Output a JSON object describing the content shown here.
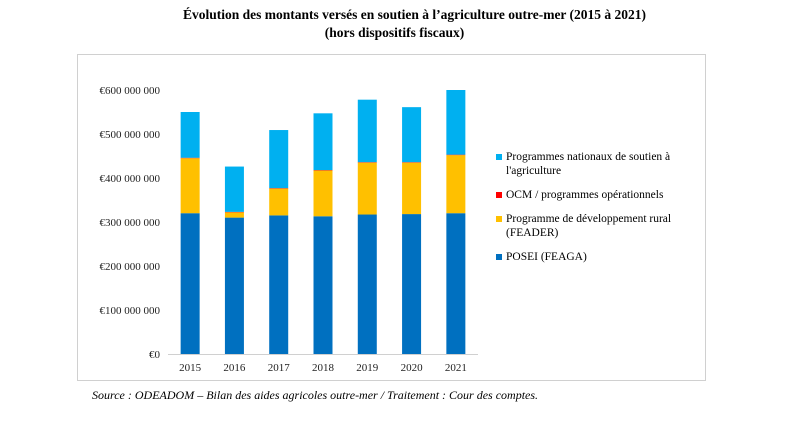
{
  "header": {
    "title_line1": "Évolution des montants versés en soutien à l’agriculture outre-mer (2015 à 2021)",
    "title_line2": "(hors dispositifs fiscaux)"
  },
  "source": "Source : ODEADOM – Bilan des aides agricoles outre-mer / Traitement : Cour des comptes.",
  "chart_data": {
    "type": "bar",
    "stacked": true,
    "categories": [
      "2015",
      "2016",
      "2017",
      "2018",
      "2019",
      "2020",
      "2021"
    ],
    "ylim": [
      0,
      600000000
    ],
    "yticks": [
      0,
      100000000,
      200000000,
      300000000,
      400000000,
      500000000,
      600000000
    ],
    "ytick_labels": [
      "€0",
      "€100 000 000",
      "€200 000 000",
      "€300 000 000",
      "€400 000 000",
      "€500 000 000",
      "€600 000 000"
    ],
    "grid": false,
    "legend_position": "right",
    "series": [
      {
        "name": "POSEI (FEAGA)",
        "color": "#0070c0",
        "values": [
          320000000,
          310000000,
          315000000,
          313000000,
          317000000,
          318000000,
          320000000
        ]
      },
      {
        "name": "Programme de développement rural (FEADER)",
        "color": "#ffc000",
        "values": [
          125000000,
          12000000,
          61000000,
          104000000,
          118000000,
          117000000,
          132000000
        ]
      },
      {
        "name": "OCM / programmes opérationnels",
        "color": "#ff0000",
        "values": [
          1000000,
          1000000,
          1000000,
          1000000,
          1000000,
          1000000,
          1000000
        ]
      },
      {
        "name": "Programmes nationaux de soutien à l'agriculture",
        "color": "#00b0f0",
        "values": [
          104000000,
          103000000,
          132000000,
          129000000,
          142000000,
          125000000,
          147000000
        ]
      }
    ],
    "legend_order": [
      3,
      2,
      1,
      0
    ]
  }
}
